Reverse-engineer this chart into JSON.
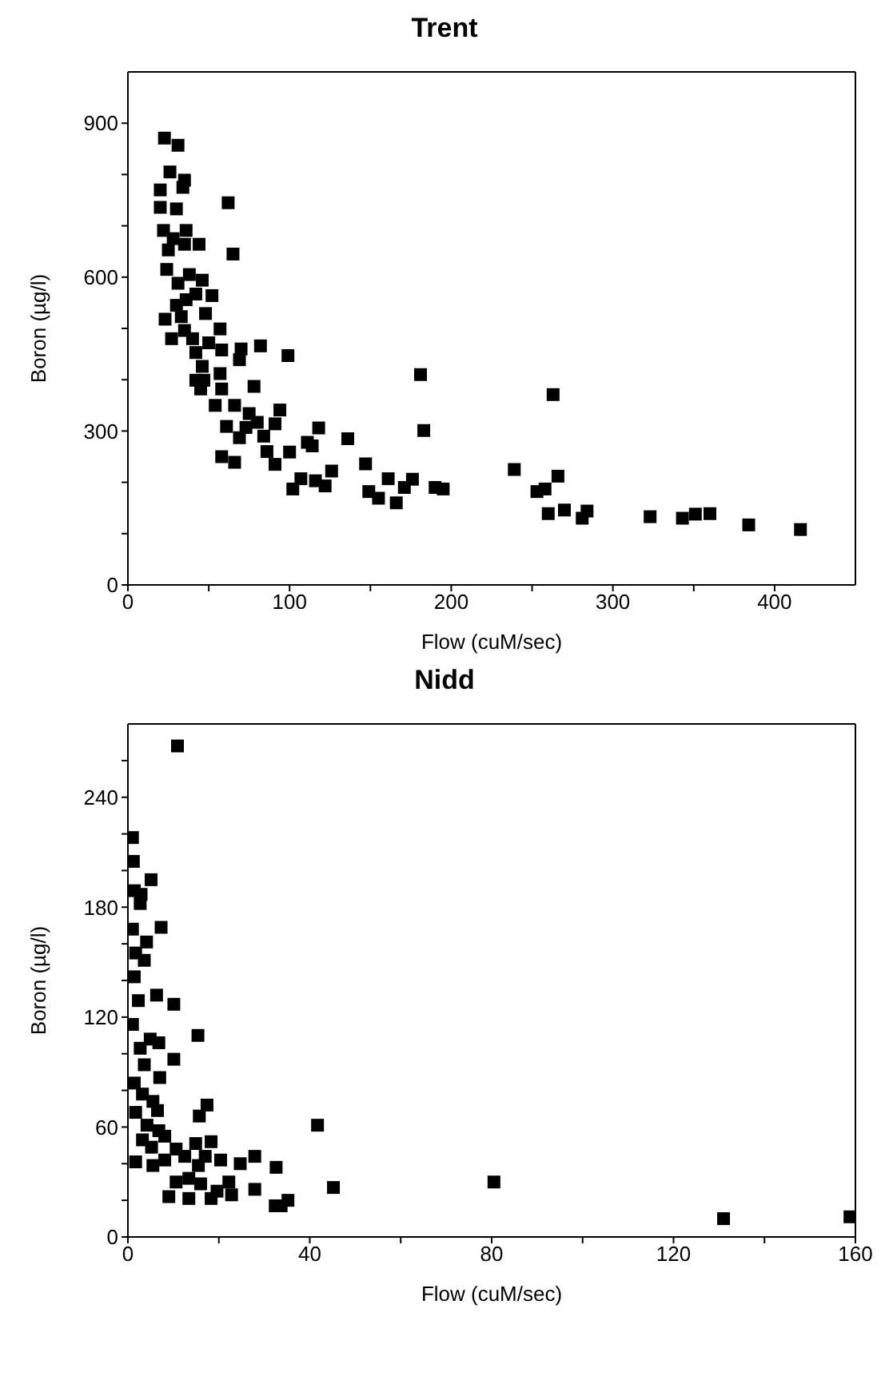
{
  "chart_data": [
    {
      "type": "scatter",
      "title": "Trent",
      "xlabel": "Flow (cuM/sec)",
      "ylabel": "Boron (µg/l)",
      "marker": "square",
      "grid": false,
      "xlim": [
        0,
        450
      ],
      "ylim": [
        0,
        1000
      ],
      "xticks": [
        0,
        {
          "value": 50,
          "label": null
        },
        100,
        {
          "value": 150,
          "label": null
        },
        200,
        {
          "value": 250,
          "label": null
        },
        300,
        {
          "value": 350,
          "label": null
        },
        400
      ],
      "yticks": [
        0,
        {
          "value": 100,
          "label": null
        },
        {
          "value": 200,
          "label": null
        },
        300,
        {
          "value": 400,
          "label": null
        },
        {
          "value": 500,
          "label": null
        },
        600,
        {
          "value": 700,
          "label": null
        },
        {
          "value": 800,
          "label": null
        },
        900
      ],
      "series": [
        {
          "color": "#000000",
          "x": [
            22.6,
            31,
            26,
            35,
            34,
            20,
            20,
            30,
            62,
            65,
            22,
            28,
            36,
            44,
            25,
            24,
            38,
            46,
            52,
            23,
            30,
            36,
            48,
            27,
            35,
            40,
            57,
            50,
            58,
            69,
            70,
            82,
            99,
            42,
            46,
            47,
            42,
            45,
            57,
            58,
            78,
            54,
            66,
            75,
            80,
            61,
            73,
            94,
            91,
            69,
            84,
            118,
            58,
            66,
            86,
            91,
            100,
            111,
            114,
            136,
            147,
            102,
            107,
            116,
            122,
            126,
            149,
            155,
            161,
            166,
            171,
            176,
            181,
            183,
            190,
            195,
            239,
            253,
            258,
            263,
            266,
            260,
            270,
            281,
            284,
            323,
            343,
            351,
            360,
            384,
            416,
            31,
            42,
            33,
            35
          ],
          "values": [
            871,
            857,
            805,
            789,
            775,
            770,
            736,
            733,
            745,
            645,
            691,
            675,
            691,
            664,
            653,
            615,
            605,
            594,
            564,
            518,
            545,
            556,
            529,
            480,
            496,
            480,
            499,
            472,
            458,
            439,
            460,
            466,
            447,
            453,
            426,
            399,
            399,
            382,
            412,
            382,
            387,
            350,
            350,
            334,
            317,
            309,
            307,
            341,
            314,
            287,
            290,
            306,
            250,
            239,
            260,
            235,
            259,
            278,
            271,
            285,
            236,
            187,
            207,
            203,
            193,
            222,
            182,
            169,
            207,
            160,
            190,
            206,
            410,
            301,
            190,
            187,
            225,
            182,
            187,
            371,
            212,
            139,
            146,
            130,
            144,
            133,
            130,
            138,
            139,
            117,
            108,
            588,
            567,
            523,
            664
          ]
        }
      ]
    },
    {
      "type": "scatter",
      "title": "Nidd",
      "xlabel": "Flow (cuM/sec)",
      "ylabel": "Boron (µg/l)",
      "marker": "square",
      "grid": false,
      "xlim": [
        0,
        160
      ],
      "ylim": [
        0,
        280
      ],
      "xticks": [
        0,
        {
          "value": 20,
          "label": null
        },
        40,
        {
          "value": 60,
          "label": null
        },
        80,
        {
          "value": 100,
          "label": null
        },
        120,
        {
          "value": 140,
          "label": null
        },
        160
      ],
      "yticks": [
        0,
        {
          "value": 20,
          "label": null
        },
        {
          "value": 40,
          "label": null
        },
        60,
        {
          "value": 80,
          "label": null
        },
        {
          "value": 100,
          "label": null
        },
        120,
        {
          "value": 140,
          "label": null
        },
        {
          "value": 160,
          "label": null
        },
        180,
        {
          "value": 200,
          "label": null
        },
        {
          "value": 220,
          "label": null
        },
        240,
        {
          "value": 260,
          "label": null
        }
      ],
      "series": [
        {
          "color": "#000000",
          "x": [
            10.9,
            1.0,
            1.2,
            5.1,
            1.4,
            2.9,
            2.7,
            7.3,
            1.0,
            4.1,
            1.7,
            3.6,
            1.4,
            6.3,
            10.1,
            2.3,
            1.0,
            15.4,
            4.9,
            6.8,
            2.7,
            10.1,
            3.6,
            7.0,
            1.4,
            3.2,
            5.5,
            17.4,
            6.5,
            1.7,
            15.7,
            41.7,
            4.2,
            6.8,
            8.1,
            3.2,
            18.3,
            5.2,
            14.9,
            10.6,
            1.7,
            5.5,
            8.1,
            12.5,
            20.4,
            24.7,
            27.9,
            32.6,
            17.0,
            15.5,
            10.6,
            13.4,
            16.0,
            22.2,
            45.2,
            27.9,
            9.0,
            13.4,
            18.3,
            19.6,
            22.8,
            32.4,
            33.7,
            35.2,
            80.5,
            131,
            158.8
          ],
          "values": [
            268,
            218,
            205,
            195,
            189,
            187,
            182,
            169,
            168,
            161,
            155,
            151,
            142,
            132,
            127,
            129,
            116,
            110,
            108,
            106,
            103,
            97,
            94,
            87,
            84,
            78,
            74,
            72,
            69,
            68,
            66,
            61,
            61,
            58,
            55,
            53,
            52,
            49,
            51,
            48,
            41,
            39,
            42,
            44,
            42,
            40,
            44,
            38,
            44,
            39,
            30,
            32,
            29,
            30,
            27,
            26,
            22,
            21,
            21,
            25,
            23,
            17,
            17,
            20,
            30,
            10,
            11
          ]
        }
      ]
    }
  ]
}
